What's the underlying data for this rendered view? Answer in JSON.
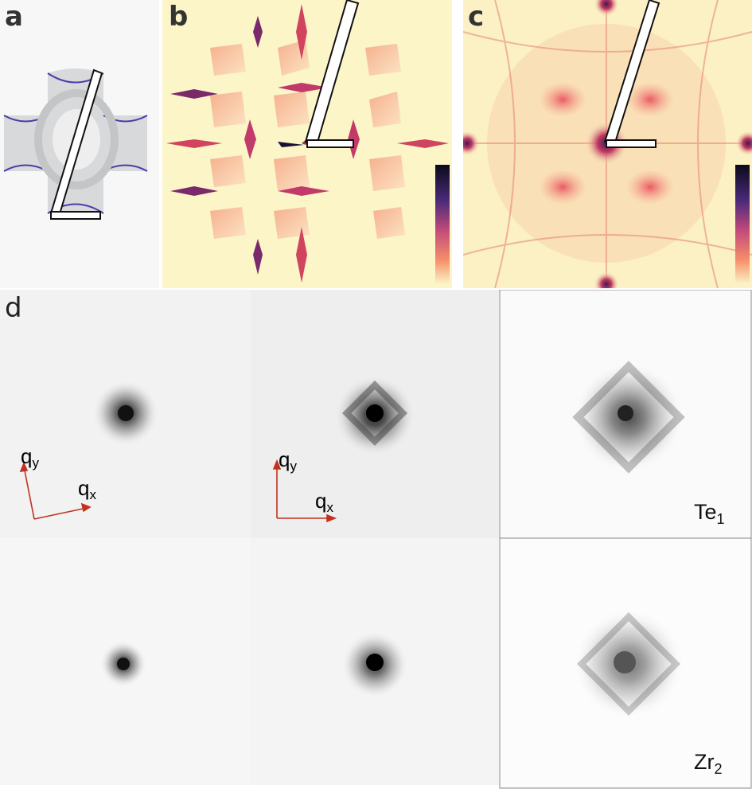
{
  "panels": {
    "a": {
      "label": "a"
    },
    "b": {
      "label": "b"
    },
    "c": {
      "label": "c"
    },
    "d": {
      "label": "d",
      "axes": {
        "qy_base": "q",
        "qy_sub": "y",
        "qx_base": "q",
        "qx_sub": "x"
      },
      "right_top": {
        "base": "Te",
        "sub": "1"
      },
      "right_bottom": {
        "base": "Zr",
        "sub": "2"
      }
    }
  },
  "colors": {
    "arrow": "#c0321e",
    "inferno_light": "#fbf5c8",
    "inferno_dark": "#1a1033",
    "accent_pink": "#ee6a6a"
  }
}
